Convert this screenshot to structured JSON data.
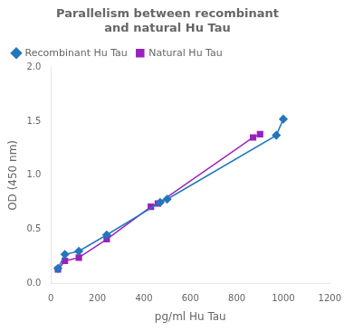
{
  "chart_data": {
    "type": "line",
    "title": [
      "Parallelism between recombinant",
      "and natural Hu Tau"
    ],
    "xlabel": "pg/ml Hu Tau",
    "ylabel": "OD (450 nm)",
    "xlim": [
      0,
      1200
    ],
    "ylim": [
      0,
      2
    ],
    "xticks": [
      0,
      200,
      400,
      600,
      800,
      1000,
      1200
    ],
    "yticks": [
      {
        "value": 0,
        "label": "0.0"
      },
      0.5,
      {
        "value": 1,
        "label": "1.0"
      },
      1.5,
      {
        "value": 2,
        "label": "2.0"
      }
    ],
    "grid": false,
    "legend": "upper left",
    "series": [
      {
        "name": "Recombinant Hu Tau",
        "color": "#2277bb",
        "marker": "diamond",
        "x": [
          30,
          60,
          120,
          240,
          470,
          500,
          970,
          1000
        ],
        "values": [
          0.14,
          0.27,
          0.3,
          0.45,
          0.75,
          0.78,
          1.37,
          1.52
        ]
      },
      {
        "name": "Natural Hu Tau",
        "color": "#9922bb",
        "marker": "square",
        "x": [
          30,
          60,
          120,
          240,
          430,
          460,
          870,
          900
        ],
        "values": [
          0.13,
          0.21,
          0.24,
          0.41,
          0.71,
          0.74,
          1.35,
          1.38
        ]
      }
    ]
  }
}
